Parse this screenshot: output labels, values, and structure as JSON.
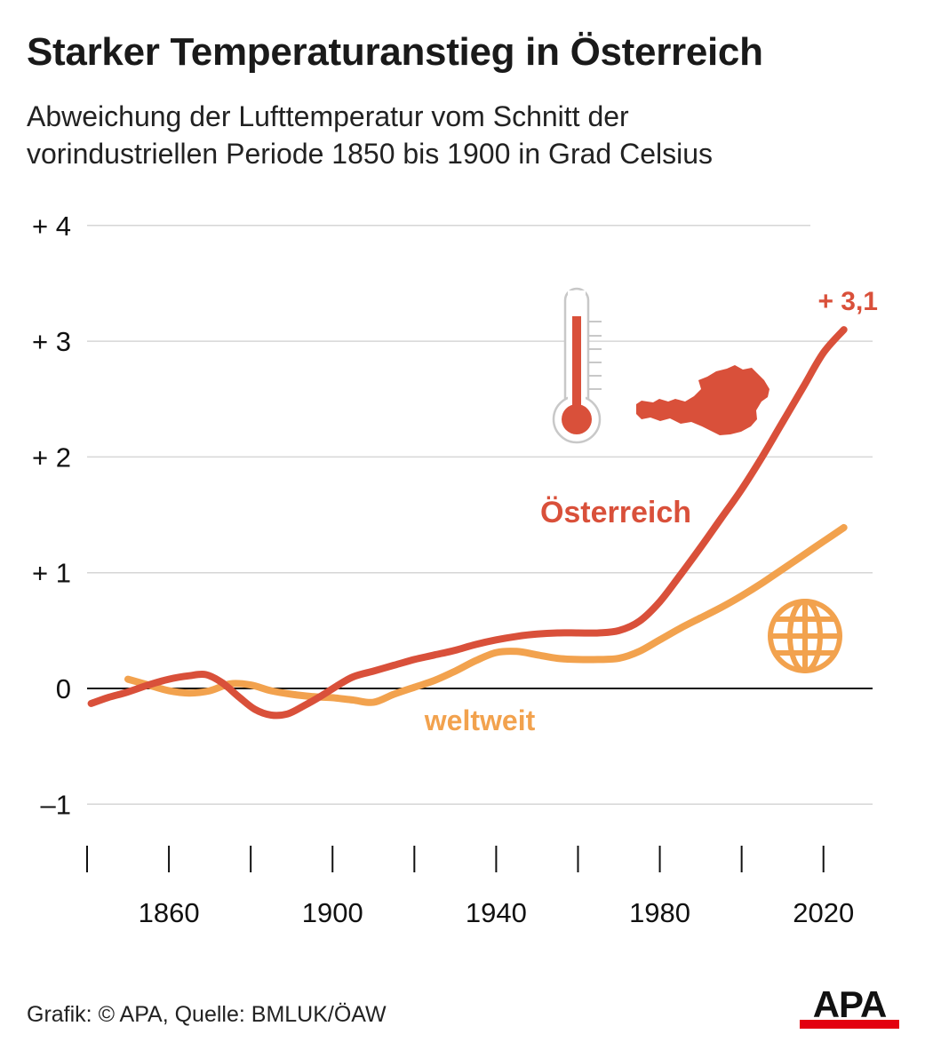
{
  "header": {
    "title": "Starker Temperaturanstieg in Österreich",
    "subtitle_line1": "Abweichung der Lufttemperatur vom Schnitt der",
    "subtitle_line2": "vorindustriellen Periode 1850 bis 1900 in Grad Celsius"
  },
  "footer": {
    "source": "Grafik: © APA, Quelle: BMLUK/ÖAW",
    "logo_text": "APA"
  },
  "icons": [
    "thermometer-icon",
    "austria-map-icon",
    "globe-icon"
  ],
  "colors": {
    "austria": "#d9503a",
    "world": "#f2a24e",
    "grid": "#d6d6d6",
    "axis": "#111111",
    "icon_outline": "#c8c8c8",
    "logo_red": "#e3000f"
  },
  "chart_data": {
    "type": "line",
    "title": "Starker Temperaturanstieg in Österreich",
    "subtitle": "Abweichung der Lufttemperatur vom Schnitt der vorindustriellen Periode 1850 bis 1900 in Grad Celsius",
    "xlabel": "",
    "ylabel": "",
    "xlim": [
      1840,
      2032
    ],
    "ylim": [
      -1.5,
      4.2
    ],
    "y_ticks": [
      -1,
      0,
      1,
      2,
      3,
      4
    ],
    "y_tick_labels": [
      "–1",
      "0",
      "+ 1",
      "+ 2",
      "+ 3",
      "+ 4"
    ],
    "x_ticks": [
      1840,
      1860,
      1880,
      1900,
      1920,
      1940,
      1960,
      1980,
      2000,
      2020
    ],
    "x_tick_labels": [
      "",
      "1860",
      "",
      "1900",
      "",
      "1940",
      "",
      "1980",
      "",
      "2020"
    ],
    "grid": true,
    "series": [
      {
        "name": "Österreich",
        "end_label": "+ 3,1",
        "x": [
          1841,
          1845,
          1850,
          1855,
          1860,
          1865,
          1869,
          1873,
          1877,
          1881,
          1885,
          1889,
          1893,
          1897,
          1901,
          1905,
          1910,
          1915,
          1920,
          1925,
          1930,
          1935,
          1940,
          1945,
          1950,
          1955,
          1960,
          1965,
          1970,
          1975,
          1980,
          1985,
          1990,
          1995,
          2000,
          2005,
          2010,
          2015,
          2020,
          2025
        ],
        "y": [
          -0.13,
          -0.08,
          -0.03,
          0.03,
          0.08,
          0.11,
          0.12,
          0.05,
          -0.07,
          -0.18,
          -0.23,
          -0.22,
          -0.15,
          -0.07,
          0.02,
          0.1,
          0.15,
          0.2,
          0.25,
          0.29,
          0.33,
          0.38,
          0.42,
          0.45,
          0.47,
          0.48,
          0.48,
          0.48,
          0.5,
          0.58,
          0.75,
          0.98,
          1.22,
          1.47,
          1.72,
          2.0,
          2.3,
          2.6,
          2.9,
          3.1
        ]
      },
      {
        "name": "weltweit",
        "x": [
          1850,
          1855,
          1860,
          1865,
          1870,
          1875,
          1880,
          1885,
          1890,
          1895,
          1900,
          1905,
          1910,
          1915,
          1920,
          1925,
          1930,
          1935,
          1940,
          1945,
          1950,
          1955,
          1960,
          1965,
          1970,
          1975,
          1980,
          1985,
          1990,
          1995,
          2000,
          2005,
          2010,
          2015,
          2020,
          2025
        ],
        "y": [
          0.08,
          0.03,
          -0.02,
          -0.04,
          -0.02,
          0.04,
          0.03,
          -0.02,
          -0.05,
          -0.07,
          -0.08,
          -0.1,
          -0.12,
          -0.05,
          0.01,
          0.07,
          0.15,
          0.24,
          0.31,
          0.32,
          0.29,
          0.26,
          0.25,
          0.25,
          0.26,
          0.32,
          0.42,
          0.52,
          0.61,
          0.7,
          0.8,
          0.91,
          1.03,
          1.15,
          1.27,
          1.39
        ]
      }
    ]
  }
}
